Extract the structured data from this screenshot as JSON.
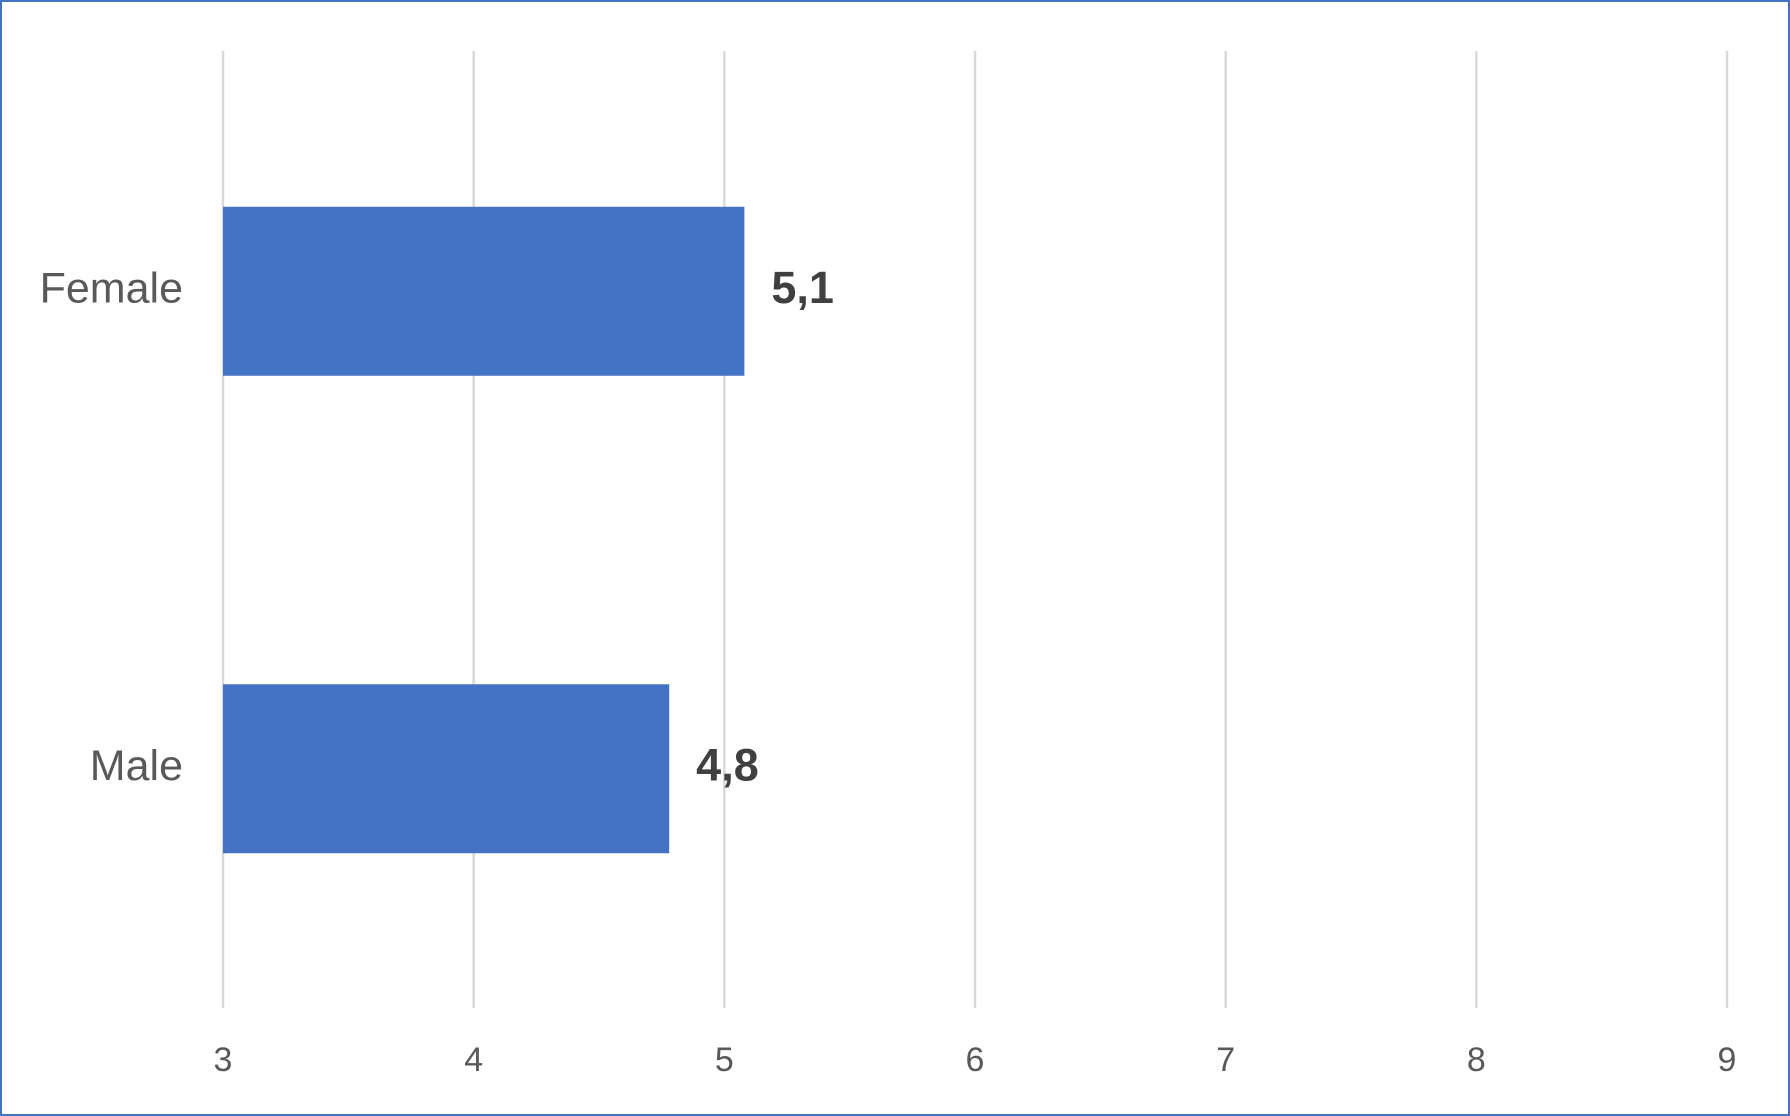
{
  "chart_data": {
    "type": "bar",
    "orientation": "horizontal",
    "categories": [
      "Female",
      "Male"
    ],
    "values": [
      5.08,
      4.78
    ],
    "value_labels": [
      "5,1",
      "4,8"
    ],
    "color": "#4472c4",
    "xlim": [
      3,
      9
    ],
    "xticks": [
      3,
      4,
      5,
      6,
      7,
      8,
      9
    ],
    "grid": true
  }
}
